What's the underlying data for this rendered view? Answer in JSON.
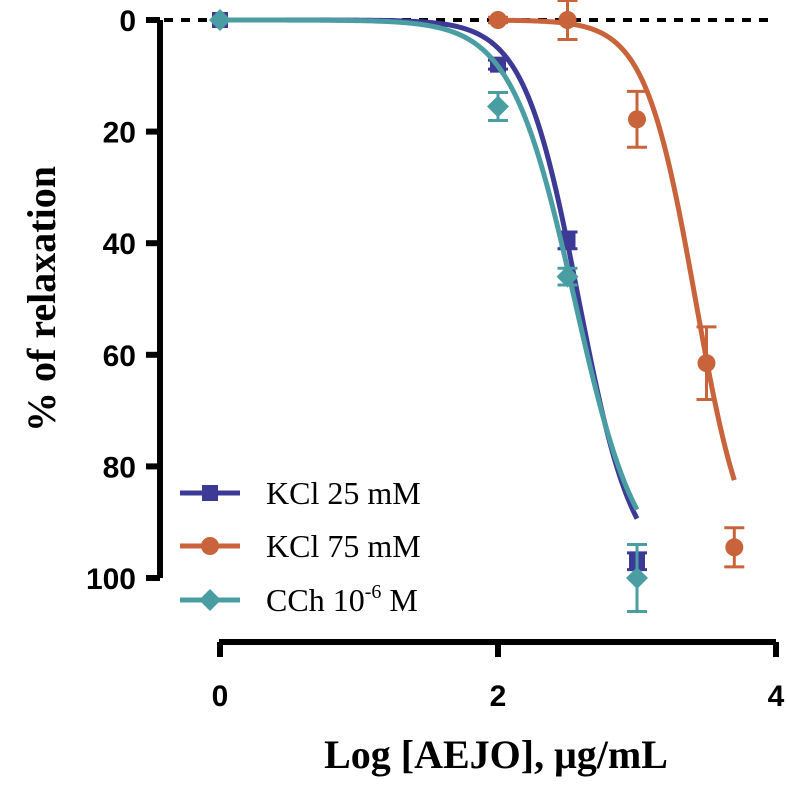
{
  "chart_data": {
    "type": "line",
    "xlabel": "Log [AEJO], μg/mL",
    "ylabel": "% of relaxation",
    "xlim": [
      0,
      4
    ],
    "ylim": [
      0,
      100
    ],
    "y_inverted": true,
    "x_ticks": [
      {
        "value": 0,
        "label": "0"
      },
      {
        "value": 2,
        "label": "2"
      },
      {
        "value": 4,
        "label": "4"
      }
    ],
    "y_ticks": [
      {
        "value": 0,
        "label": "0"
      },
      {
        "value": 20,
        "label": "20"
      },
      {
        "value": 40,
        "label": "40"
      },
      {
        "value": 60,
        "label": "60"
      },
      {
        "value": 80,
        "label": "80"
      },
      {
        "value": 100,
        "label": "100"
      }
    ],
    "reference_line": {
      "y": 0,
      "style": "dashed"
    },
    "legend": {
      "placement": "bottom-left"
    },
    "series": [
      {
        "name": "KCl 25 mM",
        "label_main": "KCl 25 mM",
        "label_sup": "",
        "label_tail": "",
        "marker": "square",
        "color": "#3d3a96",
        "points": [
          {
            "x": 0,
            "y": 0,
            "err": 0
          },
          {
            "x": 2,
            "y": 8,
            "err": 0.8
          },
          {
            "x": 2.5,
            "y": 39.5,
            "err": 1.5
          },
          {
            "x": 3,
            "y": 97,
            "err": 1.5
          }
        ],
        "curve": {
          "top": 0,
          "bottom": 100,
          "logEC50": 2.58,
          "hill": 2.2,
          "x_start": 0,
          "x_end": 3.0
        }
      },
      {
        "name": "KCl 75 mM",
        "label_main": "KCl 75 mM",
        "label_sup": "",
        "label_tail": "",
        "marker": "circle",
        "color": "#c8633b",
        "points": [
          {
            "x": 2,
            "y": 0,
            "err": 0.5
          },
          {
            "x": 2.5,
            "y": 0,
            "err": 3.5
          },
          {
            "x": 3,
            "y": 17.8,
            "err": 5
          },
          {
            "x": 3.5,
            "y": 61.5,
            "err": 6.5
          },
          {
            "x": 3.7,
            "y": 94.5,
            "err": 3.5
          }
        ],
        "curve": {
          "top": 0,
          "bottom": 100,
          "logEC50": 3.42,
          "hill": 2.4,
          "x_start": 2.0,
          "x_end": 3.7
        }
      },
      {
        "name": "CCh 10-6 M",
        "label_main": "CCh 10",
        "label_sup": "-6",
        "label_tail": " M",
        "marker": "diamond",
        "color": "#4a9da3",
        "points": [
          {
            "x": 0,
            "y": 0,
            "err": 0
          },
          {
            "x": 2,
            "y": 15.5,
            "err": 2.5
          },
          {
            "x": 2.5,
            "y": 46,
            "err": 1.5
          },
          {
            "x": 3,
            "y": 100,
            "err": 6
          }
        ],
        "curve": {
          "top": 0,
          "bottom": 100,
          "logEC50": 2.55,
          "hill": 1.9,
          "x_start": 0,
          "x_end": 3.0
        }
      }
    ]
  }
}
